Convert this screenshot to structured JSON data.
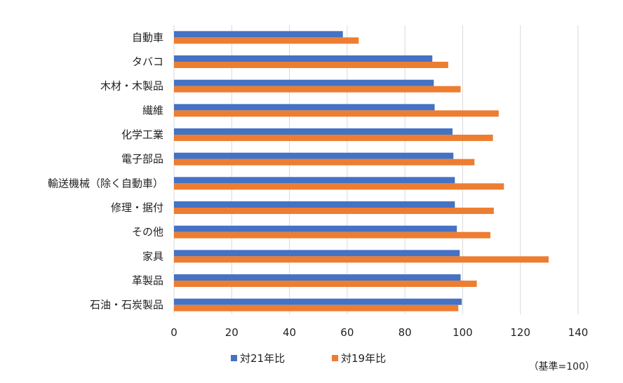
{
  "chart_data": {
    "type": "bar",
    "orientation": "horizontal",
    "categories": [
      "自動車",
      "タバコ",
      "木材・木製品",
      "繊維",
      "化学工業",
      "電子部品",
      "輸送機械（除く自動車）",
      "修理・据付",
      "その他",
      "家具",
      "革製品",
      "石油・石炭製品"
    ],
    "series": [
      {
        "name": "対21年比",
        "color": "#4472C4",
        "values": [
          58.5,
          89.5,
          90,
          90.3,
          96.5,
          96.8,
          97.3,
          97.3,
          98,
          99,
          99.3,
          99.7
        ]
      },
      {
        "name": "対19年比",
        "color": "#ED7D31",
        "values": [
          64,
          95,
          99.3,
          112.5,
          110.5,
          104.1,
          114.3,
          110.8,
          109.6,
          129.8,
          104.9,
          98.5
        ]
      }
    ],
    "xlim": [
      0,
      140
    ],
    "xticks": [
      "0",
      "20",
      "40",
      "60",
      "80",
      "100",
      "120",
      "140"
    ],
    "grid": "vertical",
    "legend": "bottom",
    "note": "（基準=100）"
  }
}
